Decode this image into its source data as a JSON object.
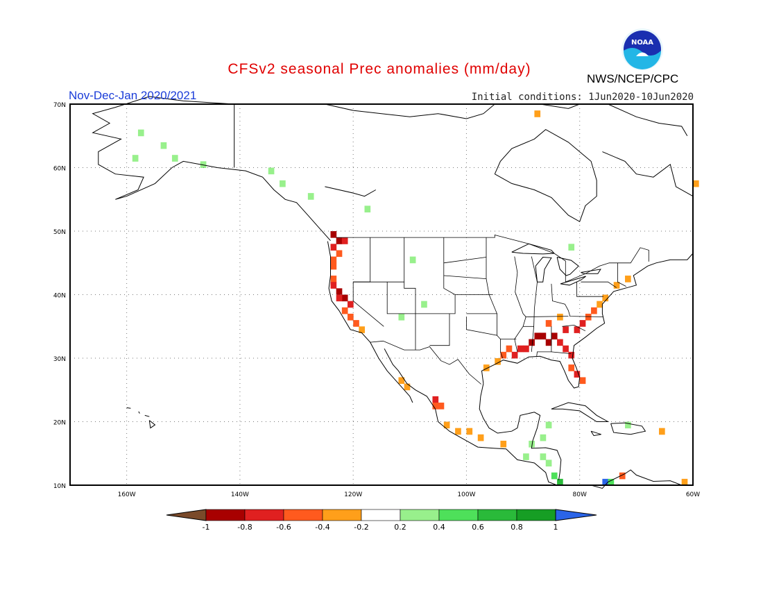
{
  "header": {
    "title": "CFSv2 seasonal Prec anomalies (mm/day)",
    "period": "Nov-Dec-Jan 2020/2021",
    "initial_conditions": "Initial conditions: 1Jun2020-10Jun2020",
    "agency": "NWS/NCEP/CPC",
    "logo_text": "NOAA"
  },
  "map": {
    "lon_range": [
      -170,
      -60
    ],
    "lat_range": [
      10,
      70
    ],
    "lon_ticks": [
      "160W",
      "140W",
      "120W",
      "100W",
      "80W",
      "60W"
    ],
    "lat_ticks": [
      "70N",
      "60N",
      "50N",
      "40N",
      "30N",
      "20N",
      "10N"
    ],
    "grid": true,
    "cells": [
      {
        "lon": -124,
        "lat": 49,
        "v": -0.9
      },
      {
        "lon": -123,
        "lat": 48,
        "v": -0.8
      },
      {
        "lon": -122,
        "lat": 48,
        "v": -0.7
      },
      {
        "lon": -124,
        "lat": 47,
        "v": -0.6
      },
      {
        "lon": -123,
        "lat": 46,
        "v": -0.5
      },
      {
        "lon": -124,
        "lat": 45,
        "v": -0.4
      },
      {
        "lon": -124,
        "lat": 44,
        "v": -0.4
      },
      {
        "lon": -124,
        "lat": 42,
        "v": -0.5
      },
      {
        "lon": -124,
        "lat": 41,
        "v": -0.7
      },
      {
        "lon": -123,
        "lat": 40,
        "v": -0.8
      },
      {
        "lon": -122,
        "lat": 39,
        "v": -0.8
      },
      {
        "lon": -123,
        "lat": 39,
        "v": -0.6
      },
      {
        "lon": -121,
        "lat": 38,
        "v": -0.6
      },
      {
        "lon": -122,
        "lat": 37,
        "v": -0.5
      },
      {
        "lon": -121,
        "lat": 36,
        "v": -0.4
      },
      {
        "lon": -120,
        "lat": 35,
        "v": -0.4
      },
      {
        "lon": -119,
        "lat": 34,
        "v": -0.3
      },
      {
        "lon": -112,
        "lat": 26,
        "v": -0.3
      },
      {
        "lon": -111,
        "lat": 25,
        "v": -0.3
      },
      {
        "lon": -106,
        "lat": 23,
        "v": -0.6
      },
      {
        "lon": -105,
        "lat": 22,
        "v": -0.5
      },
      {
        "lon": -106,
        "lat": 22,
        "v": -0.4
      },
      {
        "lon": -104,
        "lat": 19,
        "v": -0.3
      },
      {
        "lon": -102,
        "lat": 18,
        "v": -0.3
      },
      {
        "lon": -100,
        "lat": 18,
        "v": -0.3
      },
      {
        "lon": -98,
        "lat": 17,
        "v": -0.3
      },
      {
        "lon": -94,
        "lat": 16,
        "v": -0.3
      },
      {
        "lon": -97,
        "lat": 28,
        "v": -0.3
      },
      {
        "lon": -95,
        "lat": 29,
        "v": -0.3
      },
      {
        "lon": -94,
        "lat": 30,
        "v": -0.4
      },
      {
        "lon": -93,
        "lat": 31,
        "v": -0.4
      },
      {
        "lon": -92,
        "lat": 30,
        "v": -0.6
      },
      {
        "lon": -91,
        "lat": 31,
        "v": -0.6
      },
      {
        "lon": -90,
        "lat": 31,
        "v": -0.7
      },
      {
        "lon": -89,
        "lat": 32,
        "v": -0.8
      },
      {
        "lon": -88,
        "lat": 33,
        "v": -0.8
      },
      {
        "lon": -87,
        "lat": 33,
        "v": -0.9
      },
      {
        "lon": -86,
        "lat": 32,
        "v": -0.8
      },
      {
        "lon": -85,
        "lat": 33,
        "v": -0.8
      },
      {
        "lon": -84,
        "lat": 32,
        "v": -0.7
      },
      {
        "lon": -83,
        "lat": 31,
        "v": -0.6
      },
      {
        "lon": -82,
        "lat": 30,
        "v": -0.6
      },
      {
        "lon": -82,
        "lat": 28,
        "v": -0.5
      },
      {
        "lon": -81,
        "lat": 27,
        "v": -0.7
      },
      {
        "lon": -80,
        "lat": 26,
        "v": -0.5
      },
      {
        "lon": -83,
        "lat": 34,
        "v": -0.7
      },
      {
        "lon": -81,
        "lat": 34,
        "v": -0.7
      },
      {
        "lon": -80,
        "lat": 35,
        "v": -0.6
      },
      {
        "lon": -79,
        "lat": 36,
        "v": -0.5
      },
      {
        "lon": -78,
        "lat": 37,
        "v": -0.4
      },
      {
        "lon": -77,
        "lat": 38,
        "v": -0.3
      },
      {
        "lon": -76,
        "lat": 39,
        "v": -0.3
      },
      {
        "lon": -74,
        "lat": 41,
        "v": -0.3
      },
      {
        "lon": -72,
        "lat": 42,
        "v": -0.3
      },
      {
        "lon": -86,
        "lat": 35,
        "v": -0.4
      },
      {
        "lon": -84,
        "lat": 36,
        "v": -0.3
      },
      {
        "lon": -66,
        "lat": 18,
        "v": -0.3
      },
      {
        "lon": -73,
        "lat": 11,
        "v": -0.4
      },
      {
        "lon": -62,
        "lat": 10,
        "v": -0.3
      },
      {
        "lon": -60,
        "lat": 57,
        "v": -0.3
      },
      {
        "lon": -88,
        "lat": 68,
        "v": -0.3
      },
      {
        "lon": -158,
        "lat": 65,
        "v": 0.3
      },
      {
        "lon": -154,
        "lat": 63,
        "v": 0.3
      },
      {
        "lon": -152,
        "lat": 61,
        "v": 0.3
      },
      {
        "lon": -159,
        "lat": 61,
        "v": 0.3
      },
      {
        "lon": -147,
        "lat": 60,
        "v": 0.3
      },
      {
        "lon": -135,
        "lat": 59,
        "v": 0.3
      },
      {
        "lon": -133,
        "lat": 57,
        "v": 0.3
      },
      {
        "lon": -128,
        "lat": 55,
        "v": 0.3
      },
      {
        "lon": -118,
        "lat": 53,
        "v": 0.3
      },
      {
        "lon": -110,
        "lat": 45,
        "v": 0.3
      },
      {
        "lon": -108,
        "lat": 38,
        "v": 0.3
      },
      {
        "lon": -112,
        "lat": 36,
        "v": 0.3
      },
      {
        "lon": -82,
        "lat": 47,
        "v": 0.3
      },
      {
        "lon": -86,
        "lat": 19,
        "v": 0.3
      },
      {
        "lon": -87,
        "lat": 17,
        "v": 0.4
      },
      {
        "lon": -89,
        "lat": 16,
        "v": 0.3
      },
      {
        "lon": -90,
        "lat": 14,
        "v": 0.4
      },
      {
        "lon": -87,
        "lat": 14,
        "v": 0.4
      },
      {
        "lon": -86,
        "lat": 13,
        "v": 0.3
      },
      {
        "lon": -85,
        "lat": 11,
        "v": 0.5
      },
      {
        "lon": -84,
        "lat": 10,
        "v": 0.7
      },
      {
        "lon": -76,
        "lat": 10,
        "v": 1.1
      },
      {
        "lon": -75,
        "lat": 10,
        "v": 0.5
      },
      {
        "lon": -72,
        "lat": 19,
        "v": 0.3
      }
    ]
  },
  "colorbar": {
    "labels": [
      "-1",
      "-0.8",
      "-0.6",
      "-0.4",
      "-0.2",
      "0.2",
      "0.4",
      "0.6",
      "0.8",
      "1"
    ],
    "colors": [
      "#7a4a2a",
      "#a80000",
      "#e02020",
      "#ff5a1e",
      "#ff9f1a",
      "#ffffff",
      "#98f08c",
      "#4ee05a",
      "#2aba3a",
      "#169e24",
      "#2a64e8"
    ]
  }
}
